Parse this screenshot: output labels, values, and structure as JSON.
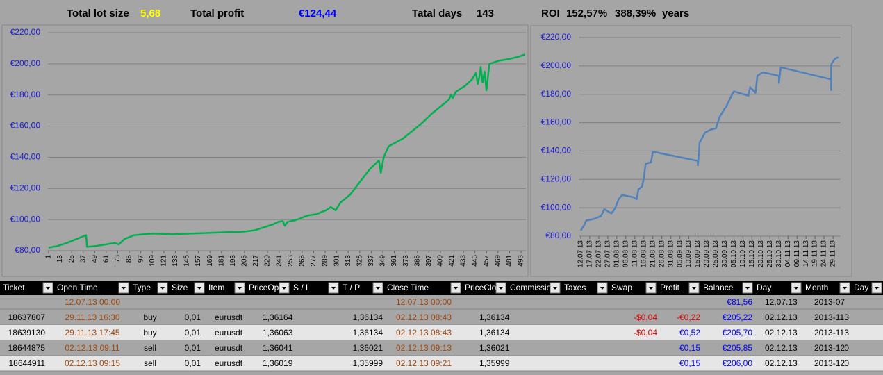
{
  "header": {
    "lot_label": "Total lot size",
    "lot": "5,68",
    "profit_label": "Total profit",
    "profit": "€124,44",
    "days_label": "Tatal days",
    "days": "143",
    "roi_label": "ROI",
    "roi": "152,57%",
    "roi_years": "388,39%",
    "years_label": "years"
  },
  "chart_data": [
    {
      "type": "line",
      "color": "#00b050",
      "grid": true,
      "x": [
        1,
        10,
        20,
        30,
        40,
        41,
        50,
        60,
        70,
        74,
        80,
        90,
        100,
        110,
        130,
        150,
        170,
        190,
        200,
        215,
        225,
        235,
        240,
        245,
        247,
        250,
        260,
        270,
        280,
        290,
        295,
        300,
        305,
        315,
        325,
        335,
        345,
        347,
        350,
        355,
        370,
        380,
        390,
        400,
        410,
        418,
        420,
        422,
        425,
        435,
        442,
        446,
        448,
        450,
        451,
        453,
        455,
        457,
        460,
        470,
        480,
        490,
        497
      ],
      "values": [
        82,
        83,
        85,
        87.5,
        90,
        82.5,
        83,
        84,
        85,
        84,
        87.5,
        90,
        90.5,
        91,
        90.5,
        91,
        91.5,
        92,
        92,
        93,
        95,
        97,
        98.5,
        99,
        96,
        98.5,
        100,
        102.5,
        103.5,
        106,
        108,
        106,
        111,
        116,
        124,
        132,
        138,
        130,
        140,
        147,
        152,
        157,
        162,
        168,
        173,
        177,
        180,
        178,
        182,
        186,
        190,
        194,
        187,
        193,
        198,
        188,
        195,
        183,
        200,
        202,
        203,
        204.5,
        206
      ],
      "xlim": [
        0,
        498
      ],
      "xticks": [
        1,
        13,
        25,
        37,
        49,
        61,
        73,
        85,
        97,
        109,
        121,
        133,
        145,
        157,
        169,
        181,
        193,
        205,
        217,
        229,
        241,
        253,
        265,
        277,
        289,
        301,
        313,
        325,
        337,
        349,
        361,
        373,
        385,
        397,
        409,
        421,
        433,
        445,
        457,
        469,
        481,
        493
      ],
      "ylim": [
        80,
        220
      ],
      "yticks": [
        {
          "value": 80,
          "label": "€80,00"
        },
        {
          "value": 100,
          "label": "€100,00"
        },
        {
          "value": 120,
          "label": "€120,00"
        },
        {
          "value": 140,
          "label": "€140,00"
        },
        {
          "value": 160,
          "label": "€160,00"
        },
        {
          "value": 180,
          "label": "€180,00"
        },
        {
          "value": 200,
          "label": "€200,00"
        },
        {
          "value": 220,
          "label": "€220,00"
        }
      ]
    },
    {
      "type": "line",
      "color": "#4f81bd",
      "grid": true,
      "x": [
        "12.07.13",
        "13.07.13",
        "14.07.13",
        "15.07.13",
        "17.07.13",
        "19.07.13",
        "21.07.13",
        "23.07.13",
        "24.07.13",
        "25.07.13",
        "29.07.13",
        "31.07.13",
        "02.08.13",
        "04.08.13",
        "10.08.13",
        "12.08.13",
        "13.08.13",
        "15.08.13",
        "16.08.13",
        "17.08.13",
        "20.08.13",
        "21.08.13",
        "15.09.13",
        "15.09.13",
        "16.09.13",
        "19.09.13",
        "22.09.13",
        "25.09.13",
        "27.09.13",
        "01.10.13",
        "04.10.13",
        "05.10.13",
        "13.10.13",
        "14.10.13",
        "17.10.13",
        "18.10.13",
        "21.10.13",
        "30.10.13",
        "30.10.13",
        "31.10.13",
        "28.11.13",
        "28.11.13",
        "28.11.13",
        "30.11.13",
        "02.12.13"
      ],
      "values": [
        84,
        86,
        88,
        91,
        91.5,
        92,
        93,
        94,
        96,
        99,
        96,
        99.5,
        106,
        109,
        107.5,
        106,
        113,
        115,
        121,
        131,
        132,
        139.5,
        133,
        130,
        146,
        153,
        155,
        156,
        164,
        172,
        180,
        182,
        179,
        185,
        181,
        193,
        195.5,
        193,
        188,
        199,
        190.5,
        183,
        201,
        205,
        206
      ],
      "xlim": [
        "11.07.13",
        "03.12.13"
      ],
      "xticks": [
        "12.07.13",
        "17.07.13",
        "22.07.13",
        "27.07.13",
        "01.08.13",
        "06.08.13",
        "11.08.13",
        "16.08.13",
        "21.08.13",
        "26.08.13",
        "31.08.13",
        "05.09.13",
        "10.09.13",
        "15.09.13",
        "20.09.13",
        "25.09.13",
        "30.09.13",
        "05.10.13",
        "10.10.13",
        "15.10.13",
        "20.10.13",
        "25.10.13",
        "30.10.13",
        "04.11.13",
        "09.11.13",
        "14.11.13",
        "19.11.13",
        "24.11.13",
        "29.11.13"
      ],
      "ylim": [
        80,
        220
      ],
      "yticks": [
        {
          "value": 80,
          "label": "€80,00"
        },
        {
          "value": 100,
          "label": "€100,00"
        },
        {
          "value": 120,
          "label": "€120,00"
        },
        {
          "value": 140,
          "label": "€140,00"
        },
        {
          "value": 160,
          "label": "€160,00"
        },
        {
          "value": 180,
          "label": "€180,00"
        },
        {
          "value": 200,
          "label": "€200,00"
        },
        {
          "value": 220,
          "label": "€220,00"
        }
      ]
    }
  ],
  "table": {
    "columns": [
      "Ticket",
      "Open Time",
      "Type",
      "Size",
      "Item",
      "PriceOpe",
      "S / L",
      "T / P",
      "Close Time",
      "PriceClos",
      "Commission",
      "Taxes",
      "Swap",
      "Profit",
      "Balance",
      "Day",
      "Month",
      "Day"
    ],
    "rows": [
      [
        null,
        "12.07.13 00:00",
        null,
        null,
        null,
        null,
        null,
        null,
        "12.07.13 00:00",
        null,
        null,
        null,
        null,
        null,
        "€81,56",
        "12.07.13",
        "2013-07",
        null
      ],
      [
        "18637807",
        "29.11.13 16:30",
        "buy",
        "0,01",
        "eurusdt",
        "1,36164",
        null,
        "1,36134",
        "02.12.13 08:43",
        "1,36134",
        null,
        null,
        "-$0,04",
        "-€0,22",
        "€205,22",
        "02.12.13",
        "2013-11",
        "3"
      ],
      [
        "18639130",
        "29.11.13 17:45",
        "buy",
        "0,01",
        "eurusdt",
        "1,36063",
        null,
        "1,36134",
        "02.12.13 08:43",
        "1,36134",
        null,
        null,
        "-$0,04",
        "€0,52",
        "€205,70",
        "02.12.13",
        "2013-11",
        "3"
      ],
      [
        "18644875",
        "02.12.13 09:11",
        "sell",
        "0,01",
        "eurusdt",
        "1,36041",
        null,
        "1,36021",
        "02.12.13 09:13",
        "1,36021",
        null,
        null,
        null,
        "€0,15",
        "€205,85",
        "02.12.13",
        "2013-12",
        "0"
      ],
      [
        "18644911",
        "02.12.13 09:15",
        "sell",
        "0,01",
        "eurusdt",
        "1,36019",
        null,
        "1,35999",
        "02.12.13 09:21",
        "1,35999",
        null,
        null,
        null,
        "€0,15",
        "€206,00",
        "02.12.13",
        "2013-12",
        "0"
      ]
    ]
  }
}
